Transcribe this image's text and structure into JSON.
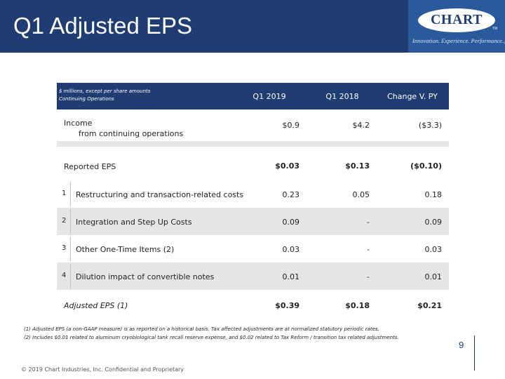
{
  "header": {
    "title": "Q1 Adjusted EPS",
    "logo_text": "CHART",
    "logo_tm": "TM",
    "tagline": "Innovation. Experience. Performance.",
    "tagline_mark": "®"
  },
  "table": {
    "note_line1": "$ millions, except per share amounts",
    "note_line2": "Continuing Operations",
    "columns": [
      "Q1 2019",
      "Q1 2018",
      "Change V. PY"
    ],
    "income": {
      "label_line1": "Income",
      "label_line2": "from continuing operations",
      "values": [
        "$0.9",
        "$4.2",
        "($3.3)"
      ]
    },
    "reported_eps": {
      "label": "Reported EPS",
      "values": [
        "$0.03",
        "$0.13",
        "($0.10)"
      ]
    },
    "adjustments": [
      {
        "index": "1",
        "label": "Restructuring and transaction-related costs",
        "values": [
          "0.23",
          "0.05",
          "0.18"
        ]
      },
      {
        "index": "2",
        "label": "Integration and Step Up Costs",
        "values": [
          "0.09",
          "-",
          "0.09"
        ]
      },
      {
        "index": "3",
        "label": "Other One-Time Items (2)",
        "values": [
          "0.03",
          "-",
          "0.03"
        ]
      },
      {
        "index": "4",
        "label": "Dilution impact of convertible notes",
        "values": [
          "0.01",
          "-",
          "0.01"
        ]
      }
    ],
    "adjusted_eps": {
      "label": "Adjusted EPS (1)",
      "values": [
        "$0.39",
        "$0.18",
        "$0.21"
      ]
    }
  },
  "footnotes": [
    "(1)  Adjusted EPS (a non-GAAP measure) is as reported on a historical basis. Tax affected adjustments are at normalized statutory periodic rates.",
    "(2)  Includes $0.01 related to aluminum cryobiological tank recall reserve expense, and $0.02 related to Tax Reform / transition tax related adjustments."
  ],
  "copyright": "© 2019 Chart Industries, Inc. Confidential and Proprietary",
  "page_number": "9",
  "colors": {
    "brand_navy": "#1f3d73",
    "logo_blue": "#2a5a9c",
    "row_shade": "#e6e6e6"
  }
}
